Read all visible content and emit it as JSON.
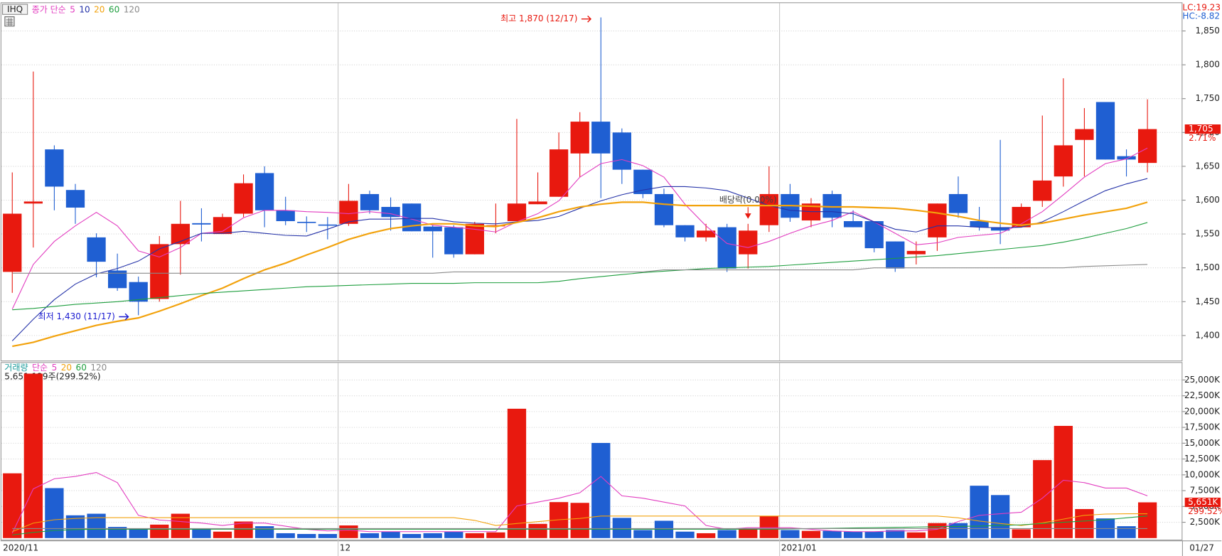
{
  "chart_data": [
    {
      "type": "candlestick",
      "symbol": "IHQ",
      "legend_title": "종가 단순",
      "up_color": "#e8190f",
      "down_color": "#1f5fd2",
      "open": [
        1494,
        1595,
        1675,
        1615,
        1545,
        1496,
        1479,
        1454,
        1535,
        1566,
        1550,
        1580,
        1640,
        1585,
        1568,
        1564,
        1565,
        1609,
        1590,
        1595,
        1561,
        1560,
        1520,
        1562,
        1569,
        1594,
        1605,
        1669,
        1716,
        1700,
        1645,
        1609,
        1563,
        1545,
        1560,
        1520,
        1563,
        1609,
        1570,
        1609,
        1569,
        1569,
        1539,
        1520,
        1545,
        1609,
        1569,
        1560,
        1560,
        1599,
        1635,
        1689,
        1745,
        1665,
        1655
      ],
      "high": [
        1641,
        1790,
        1681,
        1624,
        1551,
        1521,
        1487,
        1547,
        1599,
        1588,
        1580,
        1638,
        1650,
        1605,
        1576,
        1575,
        1624,
        1614,
        1604,
        1595,
        1563,
        1563,
        1568,
        1595,
        1720,
        1641,
        1700,
        1730,
        1870,
        1706,
        1645,
        1617,
        1563,
        1565,
        1565,
        1565,
        1650,
        1624,
        1603,
        1614,
        1585,
        1569,
        1539,
        1539,
        1595,
        1635,
        1590,
        1689,
        1595,
        1725,
        1780,
        1736,
        1745,
        1675,
        1749
      ],
      "low": [
        1463,
        1530,
        1585,
        1565,
        1486,
        1466,
        1430,
        1450,
        1490,
        1539,
        1550,
        1575,
        1560,
        1563,
        1553,
        1542,
        1562,
        1580,
        1555,
        1554,
        1515,
        1515,
        1520,
        1551,
        1569,
        1594,
        1605,
        1634,
        1603,
        1624,
        1603,
        1560,
        1539,
        1539,
        1494,
        1499,
        1553,
        1568,
        1560,
        1560,
        1560,
        1523,
        1494,
        1505,
        1525,
        1574,
        1555,
        1535,
        1560,
        1590,
        1620,
        1635,
        1660,
        1635,
        1641
      ],
      "close": [
        1580,
        1598,
        1620,
        1589,
        1509,
        1470,
        1450,
        1535,
        1565,
        1564,
        1575,
        1625,
        1585,
        1569,
        1567,
        1563,
        1599,
        1585,
        1575,
        1554,
        1554,
        1520,
        1565,
        1563,
        1595,
        1598,
        1675,
        1716,
        1669,
        1645,
        1609,
        1563,
        1545,
        1555,
        1499,
        1555,
        1609,
        1574,
        1595,
        1574,
        1560,
        1529,
        1499,
        1525,
        1595,
        1581,
        1560,
        1555,
        1590,
        1629,
        1681,
        1705,
        1660,
        1660,
        1705
      ],
      "series": [
        {
          "name": "5",
          "color": "#e23dc0",
          "values": [
            1439,
            1505,
            1539,
            1562,
            1582,
            1562,
            1525,
            1516,
            1530,
            1551,
            1554,
            1574,
            1585,
            1585,
            1583,
            1582,
            1580,
            1583,
            1580,
            1572,
            1563,
            1560,
            1557,
            1553,
            1568,
            1580,
            1599,
            1634,
            1654,
            1660,
            1651,
            1634,
            1594,
            1562,
            1536,
            1530,
            1539,
            1551,
            1562,
            1570,
            1583,
            1568,
            1551,
            1534,
            1537,
            1545,
            1548,
            1551,
            1565,
            1583,
            1608,
            1634,
            1654,
            1661,
            1677
          ]
        },
        {
          "name": "10",
          "color": "#2432a8",
          "values": [
            1392,
            1424,
            1453,
            1476,
            1491,
            1499,
            1510,
            1528,
            1539,
            1551,
            1551,
            1554,
            1551,
            1548,
            1547,
            1557,
            1568,
            1572,
            1572,
            1573,
            1573,
            1568,
            1566,
            1565,
            1568,
            1570,
            1576,
            1588,
            1599,
            1608,
            1615,
            1620,
            1620,
            1618,
            1614,
            1603,
            1592,
            1585,
            1583,
            1583,
            1580,
            1568,
            1557,
            1553,
            1562,
            1562,
            1560,
            1559,
            1560,
            1568,
            1583,
            1599,
            1614,
            1624,
            1632
          ]
        },
        {
          "name": "20",
          "color": "#f2a20c",
          "values": [
            1384,
            1390,
            1399,
            1407,
            1415,
            1421,
            1426,
            1436,
            1447,
            1459,
            1470,
            1484,
            1497,
            1507,
            1519,
            1530,
            1542,
            1551,
            1558,
            1562,
            1565,
            1565,
            1562,
            1561,
            1567,
            1574,
            1583,
            1590,
            1594,
            1597,
            1597,
            1594,
            1592,
            1592,
            1592,
            1592,
            1592,
            1592,
            1591,
            1590,
            1590,
            1589,
            1588,
            1585,
            1581,
            1576,
            1570,
            1566,
            1563,
            1566,
            1572,
            1578,
            1583,
            1588,
            1597
          ]
        },
        {
          "name": "60",
          "color": "#1e9e3e",
          "values": [
            1438,
            1440,
            1443,
            1446,
            1448,
            1450,
            1453,
            1456,
            1459,
            1462,
            1464,
            1466,
            1468,
            1470,
            1472,
            1473,
            1474,
            1475,
            1476,
            1477,
            1477,
            1477,
            1478,
            1478,
            1478,
            1478,
            1480,
            1484,
            1487,
            1490,
            1493,
            1495,
            1497,
            1499,
            1500,
            1501,
            1502,
            1504,
            1506,
            1508,
            1510,
            1512,
            1514,
            1516,
            1518,
            1521,
            1524,
            1527,
            1530,
            1533,
            1538,
            1544,
            1551,
            1558,
            1567
          ]
        },
        {
          "name": "120",
          "color": "#8a8a8a",
          "values": [
            1492,
            1492,
            1492,
            1492,
            1492,
            1492,
            1492,
            1492,
            1492,
            1492,
            1492,
            1492,
            1492,
            1492,
            1492,
            1492,
            1492,
            1492,
            1492,
            1492,
            1492,
            1494,
            1494,
            1494,
            1494,
            1494,
            1494,
            1494,
            1494,
            1494,
            1494,
            1497,
            1497,
            1497,
            1497,
            1497,
            1497,
            1497,
            1497,
            1497,
            1497,
            1500,
            1500,
            1500,
            1500,
            1500,
            1500,
            1500,
            1500,
            1500,
            1500,
            1502,
            1503,
            1504,
            1505
          ]
        }
      ],
      "ylim": [
        1363,
        1890
      ],
      "yticks": [
        {
          "value": 1400,
          "label": "1,400"
        },
        {
          "value": 1450,
          "label": "1,450"
        },
        {
          "value": 1500,
          "label": "1,500"
        },
        {
          "value": 1550,
          "label": "1,550"
        },
        {
          "value": 1600,
          "label": "1,600"
        },
        {
          "value": 1650,
          "label": "1,650"
        },
        {
          "value": 1700,
          "label": "1,700"
        },
        {
          "value": 1750,
          "label": "1,750"
        },
        {
          "value": 1800,
          "label": "1,800"
        },
        {
          "value": 1850,
          "label": "1,850"
        }
      ],
      "grid": true,
      "annotations": [
        {
          "text": "최고 1,870 (12/17)",
          "value": 1870,
          "color": "#e8190f"
        },
        {
          "text": "최저 1,430 (11/17)",
          "value": 1430,
          "color": "#1a1ad0"
        }
      ],
      "ex_dividend": "배당락(0.00%)",
      "last_price": {
        "value": 1705,
        "label": "1,705"
      },
      "change_label": "2.71%",
      "lc": "LC:19.23",
      "hc": "HC:-8.82"
    },
    {
      "type": "bar",
      "legend_title": "거래량",
      "legend_method": "단순",
      "info": "5,651,129주(299.52%)",
      "categories": [
        "2020/11",
        null,
        null,
        null,
        null,
        null,
        null,
        null,
        null,
        null,
        null,
        null,
        null,
        null,
        null,
        null,
        "12",
        null,
        null,
        null,
        null,
        null,
        null,
        null,
        null,
        null,
        null,
        null,
        null,
        null,
        null,
        null,
        null,
        null,
        null,
        null,
        null,
        "2021/01",
        null,
        null,
        null,
        null,
        null,
        null,
        null,
        null,
        null,
        null,
        null,
        null,
        null,
        null,
        null,
        null,
        null
      ],
      "last_date": "01/27",
      "values": [
        10240,
        26000,
        7900,
        3600,
        3850,
        1760,
        1390,
        2130,
        3850,
        1510,
        1020,
        2620,
        1880,
        770,
        650,
        650,
        2000,
        770,
        1020,
        650,
        770,
        1020,
        770,
        900,
        20450,
        2250,
        5690,
        5570,
        15040,
        3200,
        1270,
        2740,
        1020,
        770,
        1270,
        1390,
        3480,
        1270,
        1140,
        1140,
        1020,
        1020,
        1270,
        900,
        2370,
        2370,
        8280,
        6800,
        1390,
        12330,
        17740,
        4590,
        3110,
        1880,
        5651.129
      ],
      "series": [
        {
          "name": "5",
          "color": "#e23dc0",
          "values": [
            775,
            7780,
            9380,
            9750,
            10370,
            8770,
            3600,
            2860,
            2620,
            2370,
            2000,
            2370,
            2370,
            1880,
            1390,
            1140,
            1270,
            1020,
            1020,
            1020,
            1020,
            1020,
            1020,
            1020,
            5080,
            5690,
            6310,
            7170,
            9750,
            6680,
            6310,
            5690,
            5080,
            2000,
            1390,
            1640,
            1640,
            1640,
            1390,
            1140,
            1020,
            1020,
            1140,
            1140,
            1390,
            2620,
            3600,
            3850,
            4090,
            6310,
            9140,
            8770,
            7910,
            7910,
            6680
          ]
        },
        {
          "name": "20",
          "color": "#f2a20c",
          "values": [
            1020,
            2370,
            2900,
            3100,
            3230,
            3230,
            3230,
            3230,
            3230,
            3230,
            3230,
            3230,
            3230,
            3230,
            3230,
            3230,
            3230,
            3230,
            3230,
            3230,
            3230,
            3230,
            2800,
            2000,
            2300,
            2600,
            2900,
            3100,
            3480,
            3480,
            3480,
            3480,
            3480,
            3480,
            3480,
            3480,
            3480,
            3480,
            3480,
            3480,
            3480,
            3480,
            3480,
            3480,
            3480,
            3200,
            2700,
            2300,
            2000,
            2400,
            3000,
            3600,
            3800,
            3850,
            3850
          ]
        },
        {
          "name": "60",
          "color": "#1e9e3e",
          "values": [
            500,
            900,
            1200,
            1350,
            1400,
            1400,
            1400,
            1400,
            1400,
            1400,
            1400,
            1400,
            1400,
            1400,
            1400,
            1400,
            1400,
            1400,
            1400,
            1400,
            1400,
            1400,
            1400,
            1400,
            1400,
            1400,
            1400,
            1400,
            1400,
            1400,
            1400,
            1400,
            1400,
            1400,
            1400,
            1400,
            1400,
            1450,
            1500,
            1550,
            1600,
            1650,
            1700,
            1750,
            1800,
            1850,
            1900,
            2000,
            2100,
            2300,
            2500,
            2700,
            2900,
            3200,
            3500
          ]
        },
        {
          "name": "120",
          "color": "#8a8a8a",
          "values": [
            1500,
            1500,
            1500,
            1500,
            1500,
            1500,
            1500,
            1500,
            1500,
            1500,
            1500,
            1500,
            1500,
            1500,
            1500,
            1500,
            1500,
            1500,
            1500,
            1500,
            1500,
            1500,
            1500,
            1500,
            1500,
            1500,
            1500,
            1500,
            1500,
            1500,
            1500,
            1500,
            1500,
            1500,
            1500,
            1500,
            1500,
            1500,
            1500,
            1500,
            1500,
            1500,
            1500,
            1500,
            1500,
            1500,
            1500,
            1500,
            1500,
            1500,
            1500,
            1500,
            1500,
            1500,
            1500
          ]
        }
      ],
      "ylim": [
        0,
        27700
      ],
      "yticks": [
        {
          "value": 2500,
          "label": "2,500K"
        },
        {
          "value": 5000,
          "label": "5,000K"
        },
        {
          "value": 7500,
          "label": "7,500K"
        },
        {
          "value": 10000,
          "label": "10,000K"
        },
        {
          "value": 12500,
          "label": "12,500K"
        },
        {
          "value": 15000,
          "label": "15,000K"
        },
        {
          "value": 17500,
          "label": "17,500K"
        },
        {
          "value": 20000,
          "label": "20,000K"
        },
        {
          "value": 22500,
          "label": "22,500K"
        },
        {
          "value": 25000,
          "label": "25,000K"
        }
      ],
      "grid": true,
      "last_value_label": "5,651K",
      "last_change_label": "299.52%"
    }
  ]
}
